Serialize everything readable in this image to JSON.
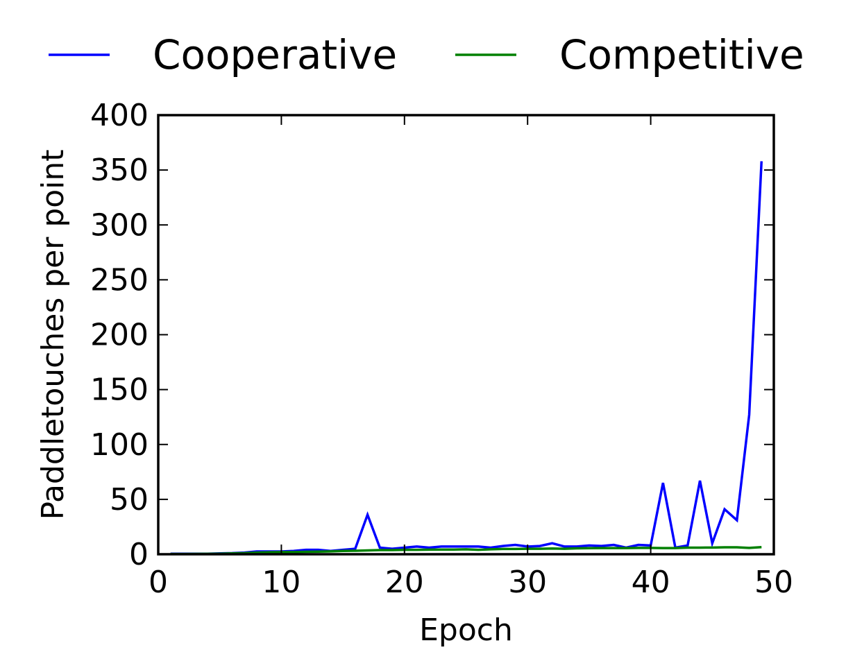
{
  "chart_data": {
    "type": "line",
    "title": "",
    "xlabel": "Epoch",
    "ylabel": "Paddletouches per point",
    "xlim": [
      0,
      50
    ],
    "ylim": [
      0,
      400
    ],
    "xticks": [
      "0",
      "10",
      "20",
      "30",
      "40",
      "50"
    ],
    "yticks": [
      "0",
      "50",
      "100",
      "150",
      "200",
      "250",
      "300",
      "350",
      "400"
    ],
    "grid": false,
    "legend": {
      "placement": "top",
      "entries": [
        "Cooperative",
        "Competitive"
      ]
    },
    "x": [
      1,
      2,
      3,
      4,
      5,
      6,
      7,
      8,
      9,
      10,
      11,
      12,
      13,
      14,
      15,
      16,
      17,
      18,
      19,
      20,
      21,
      22,
      23,
      24,
      25,
      26,
      27,
      28,
      29,
      30,
      31,
      32,
      33,
      34,
      35,
      36,
      37,
      38,
      39,
      40,
      41,
      42,
      43,
      44,
      45,
      46,
      47,
      48,
      49
    ],
    "series": [
      {
        "name": "Cooperative",
        "color": "#0000ff",
        "values": [
          0.5,
          0.5,
          0.5,
          0.5,
          0.8,
          1,
          1.5,
          2.5,
          2.5,
          2.5,
          3,
          4,
          4,
          3,
          4,
          5,
          36,
          6,
          5,
          6,
          7,
          6,
          7,
          7,
          7,
          7,
          6,
          7.5,
          8.5,
          7,
          7.5,
          10,
          7,
          7,
          8,
          7.5,
          8.5,
          6,
          8.5,
          8,
          65,
          6,
          8,
          67,
          10,
          41,
          31,
          127,
          358
        ]
      },
      {
        "name": "Competitive",
        "color": "#008000",
        "values": [
          0.2,
          0.2,
          0.3,
          0.4,
          0.5,
          0.8,
          1,
          1.5,
          1.8,
          2,
          2,
          2.2,
          2.4,
          2.6,
          3,
          3.2,
          3.5,
          3.8,
          3.8,
          4,
          4,
          4.2,
          4.3,
          4.3,
          4.5,
          4,
          4.5,
          4.8,
          4.8,
          5,
          5,
          5.2,
          5,
          5.4,
          5.5,
          5.6,
          5.6,
          5.6,
          5.8,
          5.8,
          5.6,
          5.6,
          6,
          6,
          6.1,
          6.3,
          6.3,
          5.8,
          6.5
        ]
      }
    ]
  }
}
